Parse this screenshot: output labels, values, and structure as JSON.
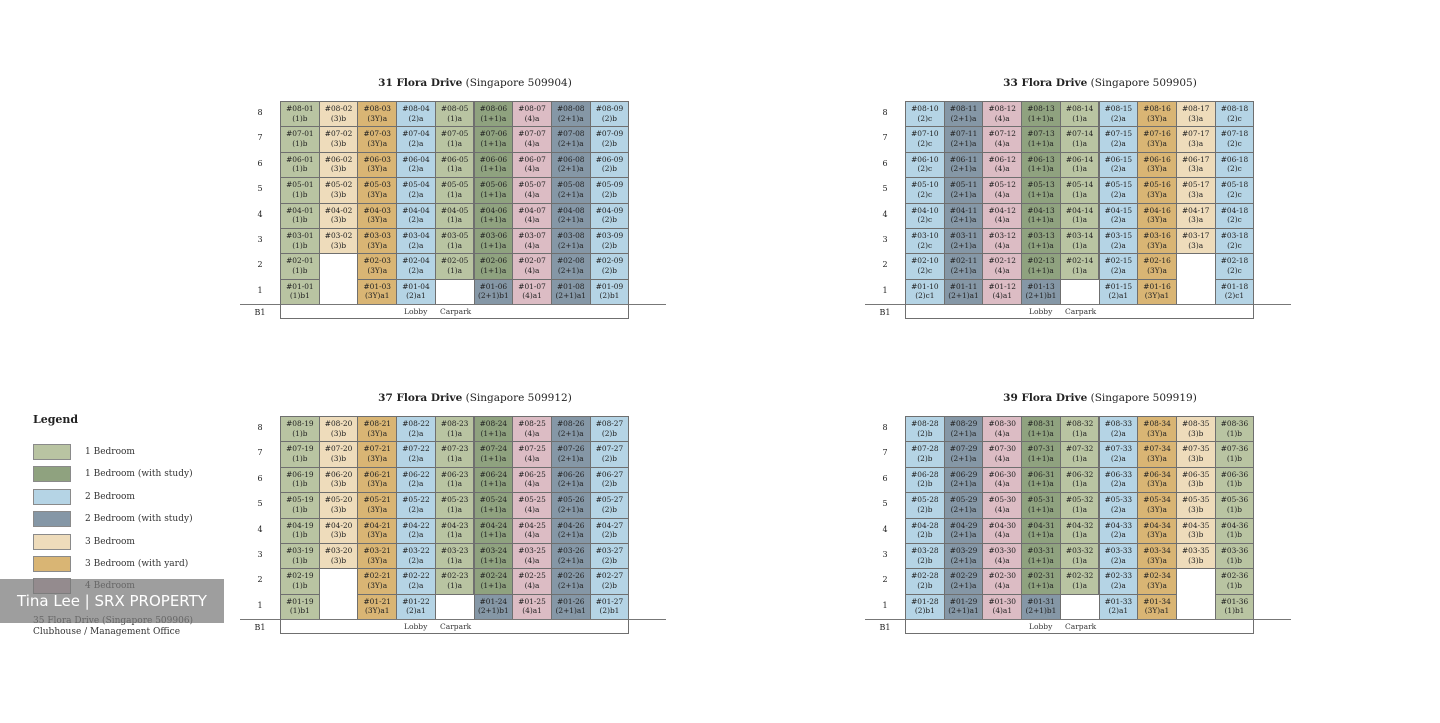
{
  "colors": {
    "1b": "#b9c4a2",
    "1s": "#8fa27f",
    "2b": "#b5d4e5",
    "2s": "#8597a6",
    "3b": "#eedcbb",
    "3y": "#d9b574",
    "4b": "#dcbcc4"
  },
  "floor_labels": [
    "8",
    "7",
    "6",
    "5",
    "4",
    "3",
    "2",
    "1"
  ],
  "b1_label": "B1",
  "lobby_label": "Lobby",
  "carpark_label": "Carpark",
  "blocks": [
    {
      "name": "31 Flora Drive",
      "postal": "(Singapore 509904)",
      "stacks": [
        {
          "stack": "01",
          "types": [
            "(1)b",
            "(1)b",
            "(1)b",
            "(1)b",
            "(1)b",
            "(1)b",
            "(1)b",
            "(1)b1"
          ],
          "class": "c1"
        },
        {
          "stack": "02",
          "types": [
            "(3)b",
            "(3)b",
            "(3)b",
            "(3)b",
            "(3)b",
            "(3)b",
            null,
            null
          ],
          "class": "c3"
        },
        {
          "stack": "03",
          "types": [
            "(3Y)a",
            "(3Y)a",
            "(3Y)a",
            "(3Y)a",
            "(3Y)a",
            "(3Y)a",
            "(3Y)a",
            "(3Y)a1"
          ],
          "class": "c3y"
        },
        {
          "stack": "04",
          "types": [
            "(2)a",
            "(2)a",
            "(2)a",
            "(2)a",
            "(2)a",
            "(2)a",
            "(2)a",
            "(2)a1"
          ],
          "class": "c2"
        },
        {
          "stack": "05",
          "types": [
            "(1)a",
            "(1)a",
            "(1)a",
            "(1)a",
            "(1)a",
            "(1)a",
            "(1)a",
            null
          ],
          "class": "c1"
        },
        {
          "stack": "06",
          "types": [
            "(1+1)a",
            "(1+1)a",
            "(1+1)a",
            "(1+1)a",
            "(1+1)a",
            "(1+1)a",
            "(1+1)a",
            "(2+1)b1"
          ],
          "class": "c1s",
          "last_class": "c2s"
        },
        {
          "stack": "07",
          "types": [
            "(4)a",
            "(4)a",
            "(4)a",
            "(4)a",
            "(4)a",
            "(4)a",
            "(4)a",
            "(4)a1"
          ],
          "class": "c4"
        },
        {
          "stack": "08",
          "types": [
            "(2+1)a",
            "(2+1)a",
            "(2+1)a",
            "(2+1)a",
            "(2+1)a",
            "(2+1)a",
            "(2+1)a",
            "(2+1)a1"
          ],
          "class": "c2s"
        },
        {
          "stack": "09",
          "types": [
            "(2)b",
            "(2)b",
            "(2)b",
            "(2)b",
            "(2)b",
            "(2)b",
            "(2)b",
            "(2)b1"
          ],
          "class": "c2"
        }
      ]
    },
    {
      "name": "33 Flora Drive",
      "postal": "(Singapore 509905)",
      "stacks": [
        {
          "stack": "10",
          "types": [
            "(2)c",
            "(2)c",
            "(2)c",
            "(2)c",
            "(2)c",
            "(2)c",
            "(2)c",
            "(2)c1"
          ],
          "class": "c2"
        },
        {
          "stack": "11",
          "types": [
            "(2+1)a",
            "(2+1)a",
            "(2+1)a",
            "(2+1)a",
            "(2+1)a",
            "(2+1)a",
            "(2+1)a",
            "(2+1)a1"
          ],
          "class": "c2s"
        },
        {
          "stack": "12",
          "types": [
            "(4)a",
            "(4)a",
            "(4)a",
            "(4)a",
            "(4)a",
            "(4)a",
            "(4)a",
            "(4)a1"
          ],
          "class": "c4"
        },
        {
          "stack": "13",
          "types": [
            "(1+1)a",
            "(1+1)a",
            "(1+1)a",
            "(1+1)a",
            "(1+1)a",
            "(1+1)a",
            "(1+1)a",
            "(2+1)b1"
          ],
          "class": "c1s",
          "last_class": "c2s"
        },
        {
          "stack": "14",
          "types": [
            "(1)a",
            "(1)a",
            "(1)a",
            "(1)a",
            "(1)a",
            "(1)a",
            "(1)a",
            null
          ],
          "class": "c1"
        },
        {
          "stack": "15",
          "types": [
            "(2)a",
            "(2)a",
            "(2)a",
            "(2)a",
            "(2)a",
            "(2)a",
            "(2)a",
            "(2)a1"
          ],
          "class": "c2"
        },
        {
          "stack": "16",
          "types": [
            "(3Y)a",
            "(3Y)a",
            "(3Y)a",
            "(3Y)a",
            "(3Y)a",
            "(3Y)a",
            "(3Y)a",
            "(3Y)a1"
          ],
          "class": "c3y"
        },
        {
          "stack": "17",
          "types": [
            "(3)a",
            "(3)a",
            "(3)a",
            "(3)a",
            "(3)a",
            "(3)a",
            null,
            null
          ],
          "class": "c3"
        },
        {
          "stack": "18",
          "types": [
            "(2)c",
            "(2)c",
            "(2)c",
            "(2)c",
            "(2)c",
            "(2)c",
            "(2)c",
            "(2)c1"
          ],
          "class": "c2"
        }
      ]
    },
    {
      "name": "37 Flora Drive",
      "postal": "(Singapore 509912)",
      "stacks": [
        {
          "stack": "19",
          "types": [
            "(1)b",
            "(1)b",
            "(1)b",
            "(1)b",
            "(1)b",
            "(1)b",
            "(1)b",
            "(1)b1"
          ],
          "class": "c1"
        },
        {
          "stack": "20",
          "types": [
            "(3)b",
            "(3)b",
            "(3)b",
            "(3)b",
            "(3)b",
            "(3)b",
            null,
            null
          ],
          "class": "c3"
        },
        {
          "stack": "21",
          "types": [
            "(3Y)a",
            "(3Y)a",
            "(3Y)a",
            "(3Y)a",
            "(3Y)a",
            "(3Y)a",
            "(3Y)a",
            "(3Y)a1"
          ],
          "class": "c3y"
        },
        {
          "stack": "22",
          "types": [
            "(2)a",
            "(2)a",
            "(2)a",
            "(2)a",
            "(2)a",
            "(2)a",
            "(2)a",
            "(2)a1"
          ],
          "class": "c2"
        },
        {
          "stack": "23",
          "types": [
            "(1)a",
            "(1)a",
            "(1)a",
            "(1)a",
            "(1)a",
            "(1)a",
            "(1)a",
            null
          ],
          "class": "c1"
        },
        {
          "stack": "24",
          "types": [
            "(1+1)a",
            "(1+1)a",
            "(1+1)a",
            "(1+1)a",
            "(1+1)a",
            "(1+1)a",
            "(1+1)a",
            "(2+1)b1"
          ],
          "class": "c1s",
          "last_class": "c2s"
        },
        {
          "stack": "25",
          "types": [
            "(4)a",
            "(4)a",
            "(4)a",
            "(4)a",
            "(4)a",
            "(4)a",
            "(4)a",
            "(4)a1"
          ],
          "class": "c4"
        },
        {
          "stack": "26",
          "types": [
            "(2+1)a",
            "(2+1)a",
            "(2+1)a",
            "(2+1)a",
            "(2+1)a",
            "(2+1)a",
            "(2+1)a",
            "(2+1)a1"
          ],
          "class": "c2s"
        },
        {
          "stack": "27",
          "types": [
            "(2)b",
            "(2)b",
            "(2)b",
            "(2)b",
            "(2)b",
            "(2)b",
            "(2)b",
            "(2)b1"
          ],
          "class": "c2"
        }
      ]
    },
    {
      "name": "39 Flora Drive",
      "postal": "(Singapore 509919)",
      "stacks": [
        {
          "stack": "28",
          "types": [
            "(2)b",
            "(2)b",
            "(2)b",
            "(2)b",
            "(2)b",
            "(2)b",
            "(2)b",
            "(2)b1"
          ],
          "class": "c2"
        },
        {
          "stack": "29",
          "types": [
            "(2+1)a",
            "(2+1)a",
            "(2+1)a",
            "(2+1)a",
            "(2+1)a",
            "(2+1)a",
            "(2+1)a",
            "(2+1)a1"
          ],
          "class": "c2s"
        },
        {
          "stack": "30",
          "types": [
            "(4)a",
            "(4)a",
            "(4)a",
            "(4)a",
            "(4)a",
            "(4)a",
            "(4)a",
            "(4)a1"
          ],
          "class": "c4"
        },
        {
          "stack": "31",
          "types": [
            "(1+1)a",
            "(1+1)a",
            "(1+1)a",
            "(1+1)a",
            "(1+1)a",
            "(1+1)a",
            "(1+1)a",
            "(2+1)b1"
          ],
          "class": "c1s",
          "last_class": "c2s"
        },
        {
          "stack": "32",
          "types": [
            "(1)a",
            "(1)a",
            "(1)a",
            "(1)a",
            "(1)a",
            "(1)a",
            "(1)a",
            null
          ],
          "class": "c1"
        },
        {
          "stack": "33",
          "types": [
            "(2)a",
            "(2)a",
            "(2)a",
            "(2)a",
            "(2)a",
            "(2)a",
            "(2)a",
            "(2)a1"
          ],
          "class": "c2"
        },
        {
          "stack": "34",
          "types": [
            "(3Y)a",
            "(3Y)a",
            "(3Y)a",
            "(3Y)a",
            "(3Y)a",
            "(3Y)a",
            "(3Y)a",
            "(3Y)a1"
          ],
          "class": "c3y"
        },
        {
          "stack": "35",
          "types": [
            "(3)b",
            "(3)b",
            "(3)b",
            "(3)b",
            "(3)b",
            "(3)b",
            null,
            null
          ],
          "class": "c3"
        },
        {
          "stack": "36",
          "types": [
            "(1)b",
            "(1)b",
            "(1)b",
            "(1)b",
            "(1)b",
            "(1)b",
            "(1)b",
            "(1)b1"
          ],
          "class": "c1"
        }
      ]
    }
  ],
  "legend": {
    "title": "Legend",
    "items": [
      {
        "label": "1 Bedroom",
        "class": "c1"
      },
      {
        "label": "1 Bedroom (with study)",
        "class": "c1s"
      },
      {
        "label": "2 Bedroom",
        "class": "c2"
      },
      {
        "label": "2 Bedroom (with study)",
        "class": "c2s"
      },
      {
        "label": "3 Bedroom",
        "class": "c3"
      },
      {
        "label": "3 Bedroom (with yard)",
        "class": "c3y"
      },
      {
        "label": "4 Bedroom",
        "class": "c4"
      }
    ]
  },
  "footnote": {
    "line1": "35 Flora Drive (Singapore 509906)",
    "line2": "Clubhouse / Management Office"
  },
  "watermark": "Tina Lee | SRX PROPERTY"
}
